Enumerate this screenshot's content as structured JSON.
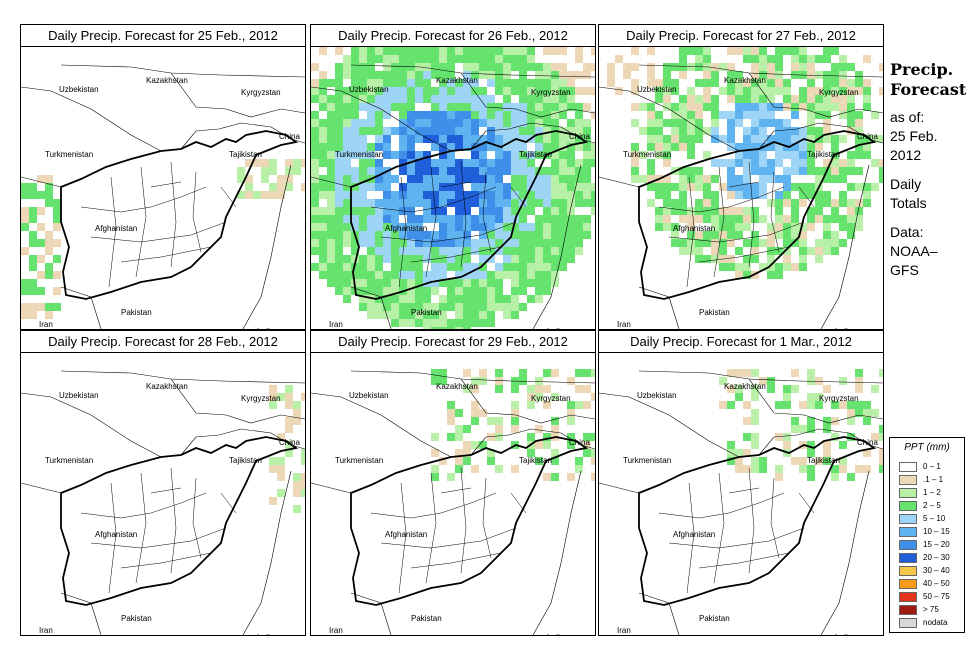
{
  "figure": {
    "side_title": "Precip. Forecast",
    "as_of_label": "as of:",
    "as_of_date_1": "25 Feb.",
    "as_of_date_2": "2012",
    "totals_1": "Daily",
    "totals_2": "Totals",
    "data_label": "Data:",
    "data_source_1": "NOAA–",
    "data_source_2": "GFS"
  },
  "map_labels": {
    "uzbekistan": "Uzbekistan",
    "kazakhstan": "Kazakhstan",
    "kyrgyzstan": "Kyrgyzstan",
    "china": "China",
    "turkmenistan": "Turkmenistan",
    "tajikistan": "Tajikistan",
    "afghanistan": "Afghanistan",
    "iran": "Iran",
    "pakistan": "Pakistan",
    "india": "India"
  },
  "panels": [
    {
      "title": "Daily Precip. Forecast for  25 Feb., 2012",
      "intensity": "light-west"
    },
    {
      "title": "Daily Precip. Forecast for  26 Feb., 2012",
      "intensity": "heavy"
    },
    {
      "title": "Daily Precip. Forecast for  27 Feb., 2012",
      "intensity": "moderate"
    },
    {
      "title": "Daily Precip. Forecast for  28 Feb., 2012",
      "intensity": "minimal"
    },
    {
      "title": "Daily Precip. Forecast for  29 Feb., 2012",
      "intensity": "light-north"
    },
    {
      "title": "Daily Precip. Forecast for  1 Mar., 2012",
      "intensity": "light-north"
    }
  ],
  "legend": {
    "title": "PPT (mm)",
    "items": [
      {
        "label": "0 – 1",
        "color": "#ffffff"
      },
      {
        "label": ".1 – 1",
        "color": "#ecd8b6"
      },
      {
        "label": "1 – 2",
        "color": "#b9f0a8"
      },
      {
        "label": "2 – 5",
        "color": "#66e36e"
      },
      {
        "label": "5 – 10",
        "color": "#9ed4f5"
      },
      {
        "label": "10 – 15",
        "color": "#5fb3f0"
      },
      {
        "label": "15 – 20",
        "color": "#3f8ee8"
      },
      {
        "label": "20 – 30",
        "color": "#1f5fd9"
      },
      {
        "label": "30 – 40",
        "color": "#f5c84a"
      },
      {
        "label": "40 – 50",
        "color": "#f59a1a"
      },
      {
        "label": "50 – 75",
        "color": "#e4341a"
      },
      {
        "label": "> 75",
        "color": "#a01a12"
      },
      {
        "label": "nodata",
        "color": "#d9d9d9"
      }
    ]
  }
}
